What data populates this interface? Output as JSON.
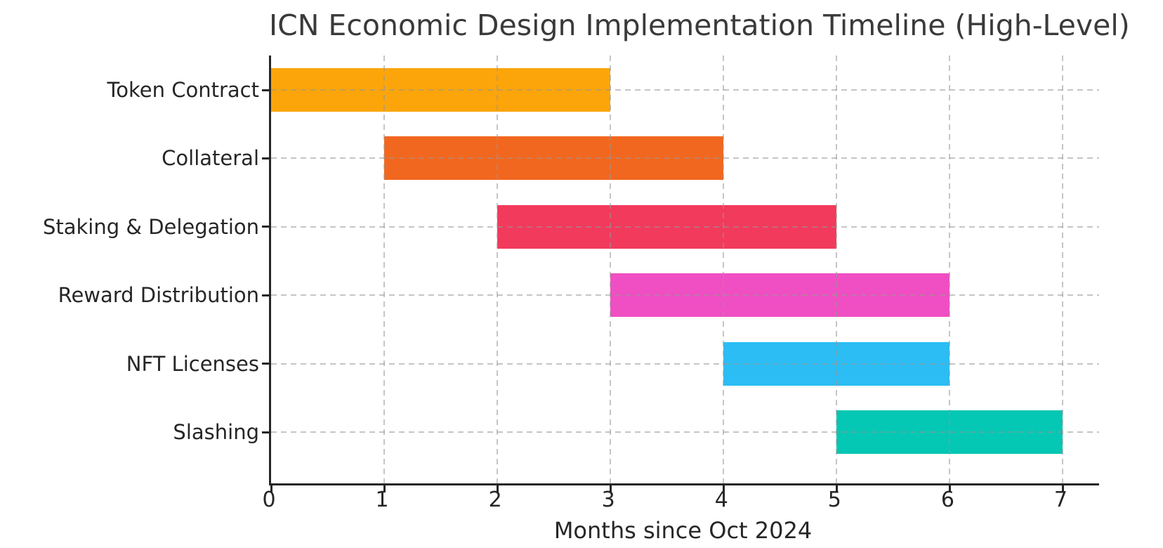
{
  "chart_data": {
    "type": "bar",
    "orientation": "horizontal-gantt",
    "title": "ICN Economic Design Implementation Timeline (High-Level)",
    "xlabel": "Months since Oct 2024",
    "ylabel": "",
    "xlim": [
      0,
      7.32
    ],
    "xticks": [
      "0",
      "1",
      "2",
      "3",
      "4",
      "5",
      "6",
      "7"
    ],
    "grid": "dashed gray, horizontal and vertical, drawn above bars",
    "legend": "none",
    "categories": [
      "Token Contract",
      "Collateral",
      "Staking & Delegation",
      "Reward Distribution",
      "NFT Licenses",
      "Slashing"
    ],
    "series": [
      {
        "name": "Token Contract",
        "start": 0,
        "end": 3,
        "duration_months": 3,
        "color": "#FCA50A"
      },
      {
        "name": "Collateral",
        "start": 1,
        "end": 4,
        "duration_months": 3,
        "color": "#F2671F"
      },
      {
        "name": "Staking & Delegation",
        "start": 2,
        "end": 5,
        "duration_months": 3,
        "color": "#F23A5C"
      },
      {
        "name": "Reward Distribution",
        "start": 3,
        "end": 6,
        "duration_months": 3,
        "color": "#F04EC3"
      },
      {
        "name": "NFT Licenses",
        "start": 4,
        "end": 6,
        "duration_months": 2,
        "color": "#2BBDF4"
      },
      {
        "name": "Slashing",
        "start": 5,
        "end": 7,
        "duration_months": 2,
        "color": "#04C7B4"
      }
    ]
  },
  "styles": {
    "background": "#ffffff",
    "axis_color": "#262626",
    "grid_color": "#c9c9c9",
    "text_color": "#262626",
    "title_color": "#3a3a3a"
  }
}
